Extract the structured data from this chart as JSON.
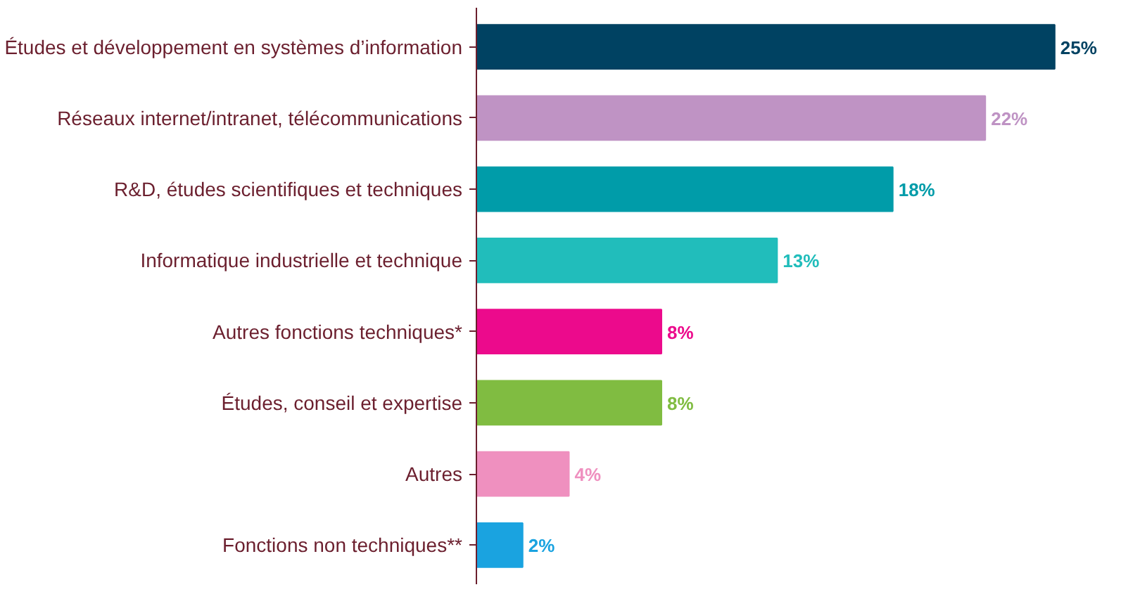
{
  "chart_data": {
    "type": "bar",
    "orientation": "horizontal",
    "categories": [
      "Études et développement en systèmes d’information",
      "Réseaux internet/intranet, télécommunications",
      "R&D, études scientifiques et techniques",
      "Informatique industrielle et technique",
      "Autres fonctions techniques*",
      "Études, conseil et expertise",
      "Autres",
      "Fonctions non techniques**"
    ],
    "values": [
      25,
      22,
      18,
      13,
      8,
      8,
      4,
      2
    ],
    "colors": [
      "#004262",
      "#bf93c4",
      "#009ca9",
      "#21bdbb",
      "#ec0a8c",
      "#80bc41",
      "#ef90bf",
      "#1aa3e0"
    ],
    "value_labels": [
      "25%",
      "22%",
      "18%",
      "13%",
      "8%",
      "8%",
      "4%",
      "2%"
    ],
    "grid": false,
    "tick_labels": "y"
  }
}
